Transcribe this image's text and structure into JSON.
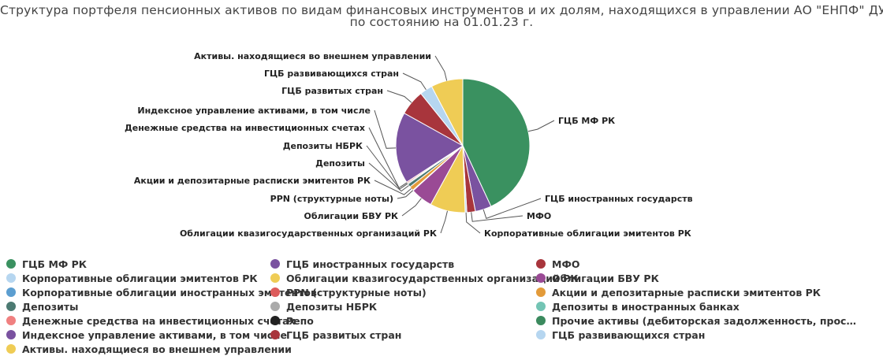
{
  "title": {
    "line1": "Структура портфеля пенсионных активов по видам финансовых инструментов и их долям, находящихся в управлении АО \"ЕНПФ\" ДУ НБРК",
    "line2": "по состоянию на 01.01.23 г."
  },
  "chart_data": {
    "type": "pie",
    "title": "Структура портфеля пенсионных активов по видам финансовых инструментов и их долям, находящихся в управлении АО \"ЕНПФ\" ДУ НБРК по состоянию на 01.01.23 г.",
    "legend_position": "bottom",
    "unit": "%",
    "slices": [
      {
        "name": "ГЦБ МФ РК",
        "value": 42.0,
        "color": "#3a9160",
        "labeled": true
      },
      {
        "name": "ГЦБ иностранных государств",
        "value": 3.8,
        "color": "#7a52a0",
        "labeled": true
      },
      {
        "name": "МФО",
        "value": 2.0,
        "color": "#a8353c",
        "labeled": true
      },
      {
        "name": "Корпоративные облигации эмитентов РК",
        "value": 0.4,
        "color": "#b6d6f0",
        "labeled": true
      },
      {
        "name": "Облигации квазигосударственных организаций РК",
        "value": 8.3,
        "color": "#efcc55",
        "labeled": true
      },
      {
        "name": "Облигации БВУ РК",
        "value": 5.2,
        "color": "#9a4a95",
        "labeled": true
      },
      {
        "name": "Корпоративные облигации иностранных эмитентов",
        "value": 0.0,
        "color": "#5c9ed0",
        "labeled": false
      },
      {
        "name": "PPN (структурные ноты)",
        "value": 0.15,
        "color": "#dd5c5c",
        "labeled": true
      },
      {
        "name": "Акции и депозитарные расписки эмитентов РК",
        "value": 1.0,
        "color": "#e39b3a",
        "labeled": true
      },
      {
        "name": "Депозиты",
        "value": 0.8,
        "color": "#4c7a72",
        "labeled": true
      },
      {
        "name": "Депозиты в иностранных банках",
        "value": 0.0,
        "color": "#73c4b4",
        "labeled": false
      },
      {
        "name": "Депозиты НБРК",
        "value": 0.25,
        "color": "#aaaaaa",
        "labeled": true
      },
      {
        "name": "Денежные средства на инвестиционных счетах",
        "value": 0.3,
        "color": "#f08080",
        "labeled": true
      },
      {
        "name": "Репо",
        "value": 0.0,
        "color": "#222222",
        "labeled": false
      },
      {
        "name": "Прочие активы (дебиторская задолженность, просроченная задолженность)",
        "value": 0.0,
        "color": "#3b8a5e",
        "labeled": false
      },
      {
        "name": "Индексное управление активами, в том числе",
        "value": 16.8,
        "color": "#7a52a0",
        "labeled": true
      },
      {
        "name": "ГЦБ развитых стран",
        "value": 6.0,
        "color": "#a8353c",
        "labeled": true
      },
      {
        "name": "ГЦБ развивающихся стран",
        "value": 3.0,
        "color": "#b6d6f0",
        "labeled": true
      },
      {
        "name": "Активы. находящиеся во внешнем управлении",
        "value": 7.5,
        "color": "#efcc55",
        "labeled": true
      }
    ]
  },
  "legend": [
    {
      "label": "ГЦБ МФ РК",
      "color": "#3a9160"
    },
    {
      "label": "ГЦБ иностранных государств",
      "color": "#7a52a0"
    },
    {
      "label": "МФО",
      "color": "#a8353c"
    },
    {
      "label": "Корпоративные облигации эмитентов РК",
      "color": "#b6d6f0"
    },
    {
      "label": "Облигации квазигосударственных организаций РК",
      "color": "#efcc55"
    },
    {
      "label": "Облигации БВУ РК",
      "color": "#9a4a95"
    },
    {
      "label": "Корпоративные облигации иностранных эмитентов",
      "color": "#5c9ed0"
    },
    {
      "label": "PPN (структурные ноты)",
      "color": "#dd5c5c"
    },
    {
      "label": "Акции и депозитарные расписки эмитентов РК",
      "color": "#e39b3a"
    },
    {
      "label": "Депозиты",
      "color": "#4c7a72"
    },
    {
      "label": "Депозиты НБРК",
      "color": "#aaaaaa"
    },
    {
      "label": "Депозиты в иностранных банках",
      "color": "#73c4b4"
    },
    {
      "label": "Денежные средства на инвестиционных счетах",
      "color": "#f08080"
    },
    {
      "label": "Репо",
      "color": "#222222"
    },
    {
      "label": "Прочие активы (дебиторская задолженность, прос…",
      "color": "#3b8a5e"
    },
    {
      "label": "Индексное управление активами, в том числе",
      "color": "#7a52a0"
    },
    {
      "label": "ГЦБ развитых стран",
      "color": "#a8353c"
    },
    {
      "label": "ГЦБ развивающихся стран",
      "color": "#b6d6f0"
    },
    {
      "label": "Активы. находящиеся во внешнем управлении",
      "color": "#efcc55"
    }
  ]
}
